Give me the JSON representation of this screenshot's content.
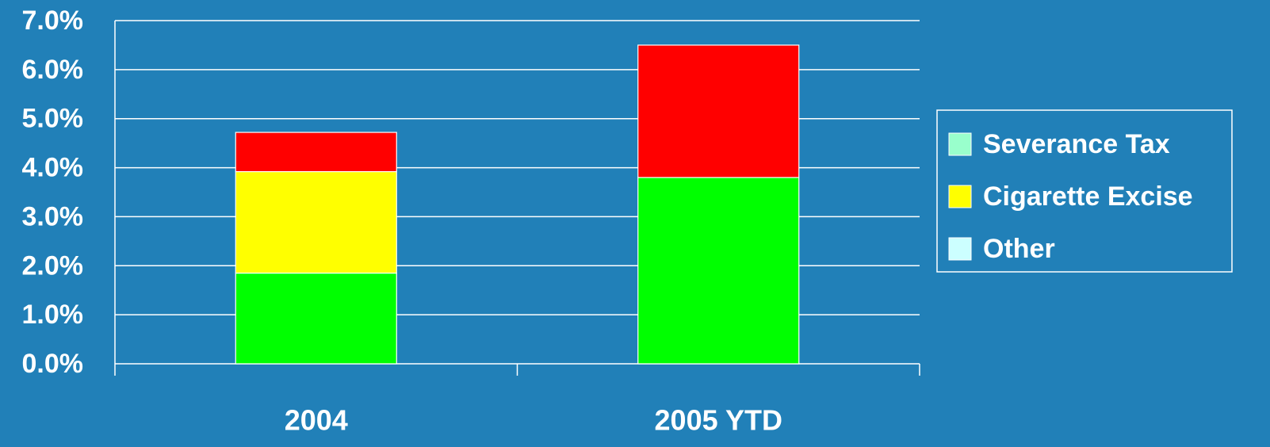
{
  "chart_data": {
    "type": "stacked_bar",
    "categories": [
      "2004",
      "2005 YTD"
    ],
    "series": [
      {
        "name": "Severance Tax",
        "color": "#00ff00",
        "legend_color": "#99ffcc",
        "values": [
          1.85,
          3.8
        ]
      },
      {
        "name": "Cigarette Excise",
        "color": "#ffff00",
        "legend_color": "#ffff00",
        "values": [
          2.07,
          0
        ]
      },
      {
        "name": "Other",
        "color": "#ff0000",
        "legend_color": "#ccffff",
        "values": [
          0.8,
          2.7
        ]
      }
    ],
    "ylim": [
      0,
      7
    ],
    "yticks": [
      {
        "value": 0,
        "label": "0.0%"
      },
      {
        "value": 1,
        "label": "1.0%"
      },
      {
        "value": 2,
        "label": "2.0%"
      },
      {
        "value": 3,
        "label": "3.0%"
      },
      {
        "value": 4,
        "label": "4.0%"
      },
      {
        "value": 5,
        "label": "5.0%"
      },
      {
        "value": 6,
        "label": "6.0%"
      },
      {
        "value": 7,
        "label": "7.0%"
      }
    ],
    "grid": true,
    "legend": "right"
  }
}
